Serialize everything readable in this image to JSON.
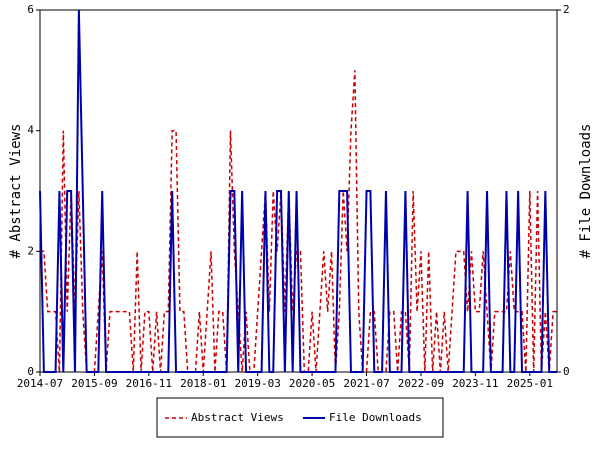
{
  "chart_data": {
    "type": "line",
    "ylabel": "# Abstract Views",
    "y2label": "# File Downloads",
    "x": [
      "2014-07",
      "2014-08",
      "2014-09",
      "2014-10",
      "2014-11",
      "2014-12",
      "2015-01",
      "2015-02",
      "2015-03",
      "2015-04",
      "2015-05",
      "2015-06",
      "2015-07",
      "2015-08",
      "2015-09",
      "2015-10",
      "2015-11",
      "2015-12",
      "2016-01",
      "2016-02",
      "2016-03",
      "2016-04",
      "2016-05",
      "2016-06",
      "2016-07",
      "2016-08",
      "2016-09",
      "2016-10",
      "2016-11",
      "2016-12",
      "2017-01",
      "2017-02",
      "2017-03",
      "2017-04",
      "2017-05",
      "2017-06",
      "2017-07",
      "2017-08",
      "2017-09",
      "2017-10",
      "2017-11",
      "2017-12",
      "2018-01",
      "2018-02",
      "2018-03",
      "2018-04",
      "2018-05",
      "2018-06",
      "2018-07",
      "2018-08",
      "2018-09",
      "2018-10",
      "2018-11",
      "2018-12",
      "2019-01",
      "2019-02",
      "2019-03",
      "2019-04",
      "2019-05",
      "2019-06",
      "2019-07",
      "2019-08",
      "2019-09",
      "2019-10",
      "2019-11",
      "2019-12",
      "2020-01",
      "2020-02",
      "2020-03",
      "2020-04",
      "2020-05",
      "2020-06",
      "2020-07",
      "2020-08",
      "2020-09",
      "2020-10",
      "2020-11",
      "2020-12",
      "2021-01",
      "2021-02",
      "2021-03",
      "2021-04",
      "2021-05",
      "2021-06",
      "2021-07",
      "2021-08",
      "2021-09",
      "2021-10",
      "2021-11",
      "2021-12",
      "2022-01",
      "2022-02",
      "2022-03",
      "2022-04",
      "2022-05",
      "2022-06",
      "2022-07",
      "2022-08",
      "2022-09",
      "2022-10",
      "2022-11",
      "2022-12",
      "2023-01",
      "2023-02",
      "2023-03",
      "2023-04",
      "2023-05",
      "2023-06",
      "2023-07",
      "2023-08",
      "2023-09",
      "2023-10",
      "2023-11",
      "2023-12",
      "2024-01",
      "2024-02",
      "2024-03",
      "2024-04",
      "2024-05",
      "2024-06",
      "2024-07",
      "2024-08",
      "2024-09",
      "2024-10",
      "2024-11",
      "2024-12",
      "2025-01",
      "2025-02",
      "2025-03",
      "2025-04",
      "2025-05",
      "2025-06",
      "2025-07",
      "2025-08"
    ],
    "xticks": [
      "2014-07",
      "2015-09",
      "2016-11",
      "2018-01",
      "2019-03",
      "2020-05",
      "2021-07",
      "2022-09",
      "2023-11",
      "2025-01"
    ],
    "ylim": [
      0,
      6
    ],
    "yticks": [
      0,
      2,
      4,
      6
    ],
    "y2lim": [
      0,
      2
    ],
    "y2ticks": [
      0,
      2
    ],
    "series": [
      {
        "name": "Abstract Views",
        "color": "#cc0000",
        "dash": true,
        "values": [
          2,
          2,
          1,
          1,
          1,
          0,
          4,
          1,
          3,
          1,
          3,
          1,
          0,
          0,
          0,
          1,
          2,
          0,
          1,
          1,
          1,
          1,
          1,
          1,
          0,
          2,
          0,
          1,
          1,
          0,
          1,
          0,
          1,
          1,
          4,
          4,
          1,
          1,
          0,
          0,
          0,
          1,
          0,
          1,
          2,
          0,
          1,
          1,
          0,
          4,
          2,
          1,
          0,
          1,
          0,
          0,
          1,
          2,
          3,
          1,
          3,
          2,
          3,
          1,
          3,
          1,
          2,
          2,
          0,
          0,
          1,
          0,
          1,
          2,
          1,
          2,
          0,
          1,
          3,
          2,
          4,
          5,
          1,
          0,
          0,
          1,
          1,
          0,
          0,
          0,
          1,
          1,
          0,
          1,
          1,
          0,
          3,
          1,
          2,
          0,
          2,
          0,
          1,
          0,
          1,
          0,
          1,
          2,
          2,
          2,
          1,
          2,
          1,
          1,
          2,
          1,
          0,
          1,
          1,
          1,
          1,
          2,
          1,
          1,
          1,
          0,
          3,
          0,
          3,
          0,
          1,
          0,
          1,
          1
        ]
      },
      {
        "name": "File Downloads",
        "color": "#0000aa",
        "dash": false,
        "axis": "y2",
        "values": [
          1,
          0,
          0,
          0,
          0,
          1,
          0,
          1,
          1,
          0,
          2,
          1,
          0,
          0,
          0,
          0,
          1,
          0,
          0,
          0,
          0,
          0,
          0,
          0,
          0,
          0,
          0,
          0,
          0,
          0,
          0,
          0,
          0,
          0,
          1,
          0,
          0,
          0,
          0,
          0,
          0,
          0,
          0,
          0,
          0,
          0,
          0,
          0,
          0,
          1,
          1,
          0,
          1,
          0,
          0,
          0,
          0,
          0,
          1,
          0,
          0,
          1,
          1,
          0,
          1,
          0,
          1,
          0,
          0,
          0,
          0,
          0,
          0,
          0,
          0,
          0,
          0,
          1,
          1,
          1,
          0,
          0,
          0,
          0,
          1,
          1,
          0,
          0,
          0,
          1,
          0,
          0,
          0,
          0,
          1,
          0,
          0,
          0,
          0,
          0,
          0,
          0,
          0,
          0,
          0,
          0,
          0,
          0,
          0,
          0,
          1,
          0,
          0,
          0,
          0,
          1,
          0,
          0,
          0,
          0,
          1,
          0,
          0,
          1,
          0,
          0,
          0,
          0,
          0,
          0,
          1,
          0,
          0,
          0
        ]
      }
    ]
  }
}
